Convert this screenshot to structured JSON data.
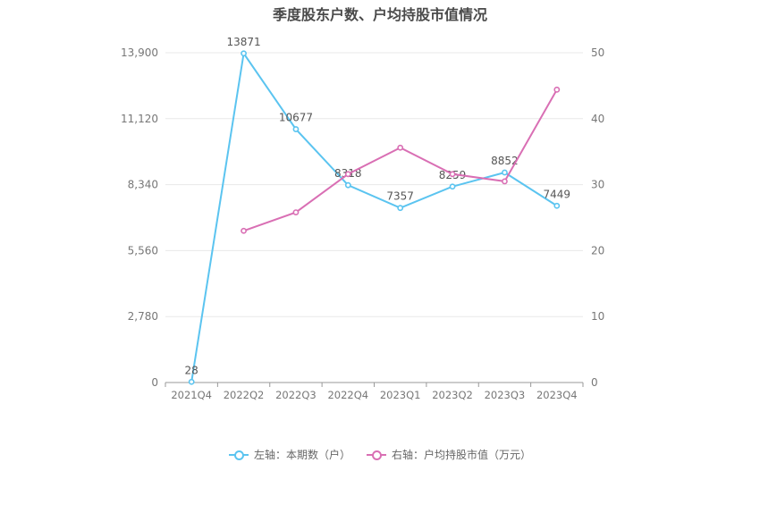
{
  "chart_data": {
    "type": "line",
    "title": "季度股东户数、户均持股市值情况",
    "categories": [
      "2021Q4",
      "2022Q2",
      "2022Q3",
      "2022Q4",
      "2023Q1",
      "2023Q2",
      "2023Q3",
      "2023Q4"
    ],
    "y_left_ticks": [
      "0",
      "2,780",
      "5,560",
      "8,340",
      "11,120",
      "13,900"
    ],
    "y_left_range": [
      0,
      13900
    ],
    "y_right_ticks": [
      "0",
      "10",
      "20",
      "30",
      "40",
      "50"
    ],
    "y_right_range": [
      0,
      50
    ],
    "grid": true,
    "legend_position": "bottom",
    "series": [
      {
        "name": "左轴：本期数（户）",
        "axis": "left",
        "color": "#5bc4f0",
        "values": [
          28,
          13871,
          10677,
          8318,
          7357,
          8259,
          8852,
          7449
        ],
        "labels": [
          "28",
          "13871",
          "10677",
          "8318",
          "7357",
          "8259",
          "8852",
          "7449"
        ]
      },
      {
        "name": "右轴：户均持股市值（万元）",
        "axis": "right",
        "color": "#d96fb4",
        "values": [
          null,
          23.0,
          25.8,
          31.6,
          35.6,
          31.6,
          30.5,
          44.4
        ],
        "labels": []
      }
    ]
  }
}
